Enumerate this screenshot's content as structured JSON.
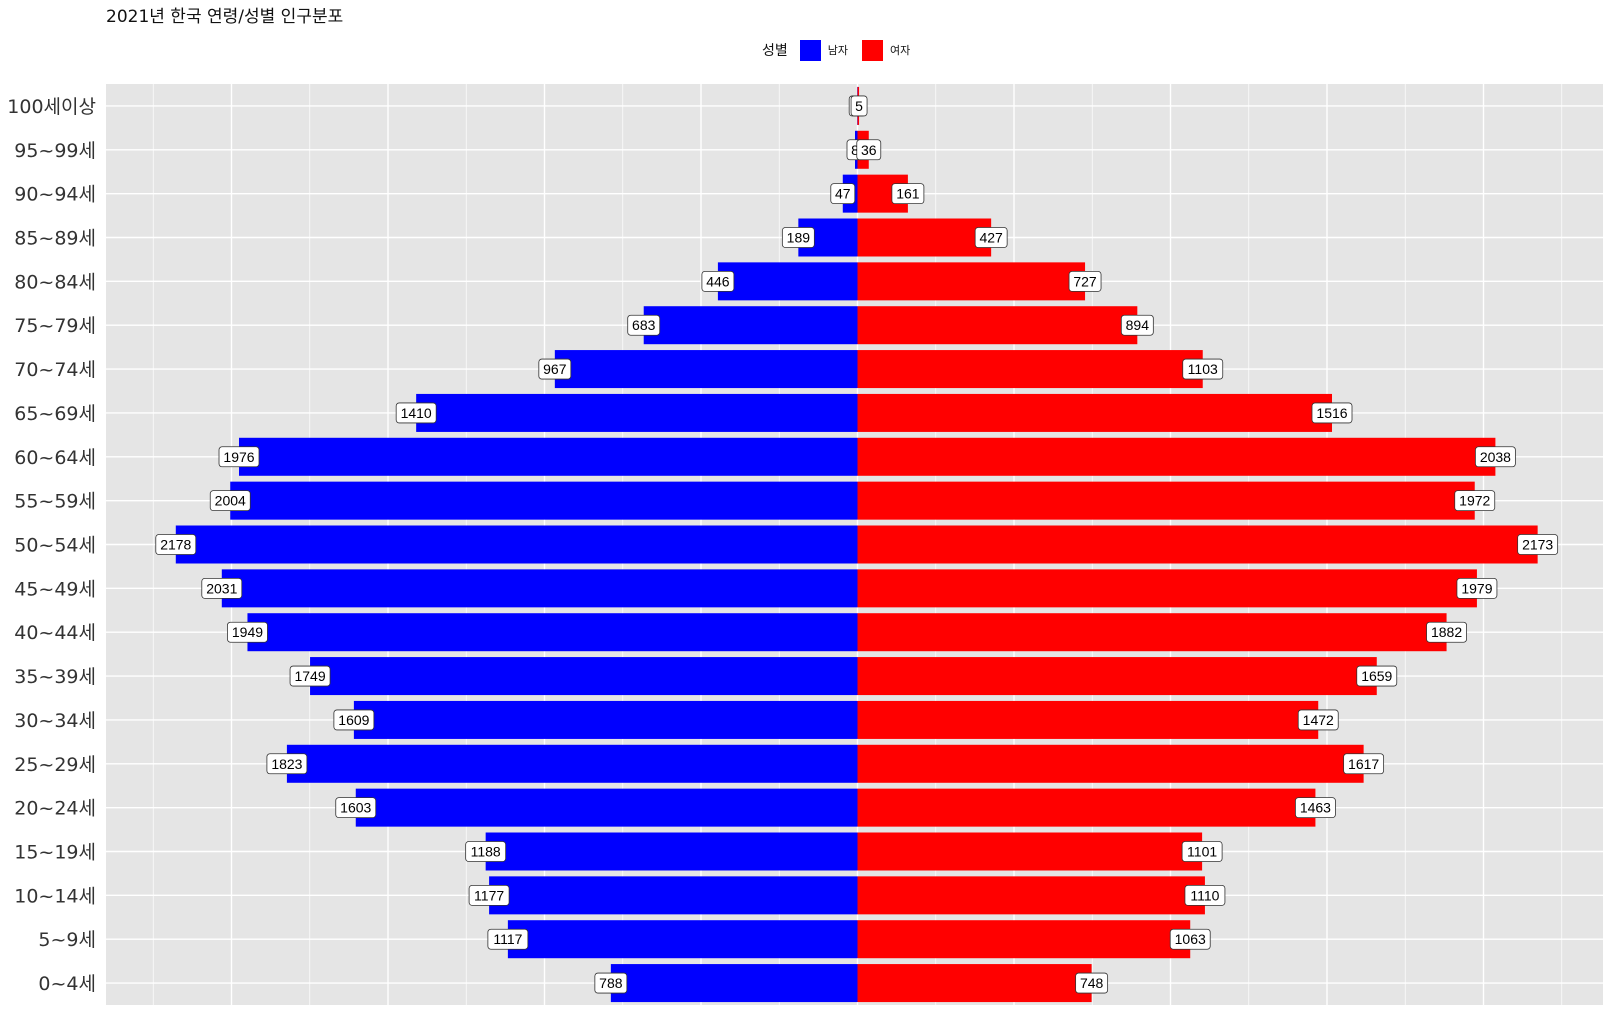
{
  "chart_data": {
    "type": "bar",
    "orientation": "horizontal-diverging",
    "title": "2021년 한국 연령/성별 인구분포",
    "legend_title": "성별",
    "legend_position": "top",
    "categories": [
      "0~4세",
      "5~9세",
      "10~14세",
      "15~19세",
      "20~24세",
      "25~29세",
      "30~34세",
      "35~39세",
      "40~44세",
      "45~49세",
      "50~54세",
      "55~59세",
      "60~64세",
      "65~69세",
      "70~74세",
      "75~79세",
      "80~84세",
      "85~89세",
      "90~94세",
      "95~99세",
      "100세이상"
    ],
    "series": [
      {
        "name": "남자",
        "color": "#0000ff",
        "direction": "left",
        "values": [
          788,
          1117,
          1177,
          1188,
          1603,
          1823,
          1609,
          1749,
          1949,
          2031,
          2178,
          2004,
          1976,
          1410,
          967,
          683,
          446,
          189,
          47,
          8,
          1
        ]
      },
      {
        "name": "여자",
        "color": "#ff0000",
        "direction": "right",
        "values": [
          748,
          1063,
          1110,
          1101,
          1463,
          1617,
          1472,
          1659,
          1882,
          1979,
          2173,
          1972,
          2038,
          1516,
          1103,
          894,
          727,
          427,
          161,
          36,
          5
        ]
      }
    ],
    "xlim": [
      -2400,
      2400
    ],
    "grid": true,
    "background": "#e5e5e5"
  }
}
